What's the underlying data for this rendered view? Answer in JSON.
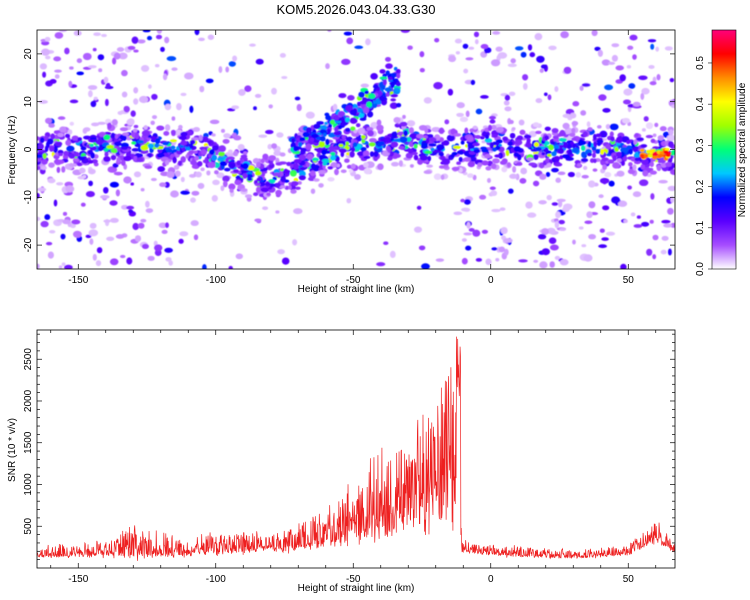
{
  "title": "KOM5.2026.043.04.33.G30",
  "chart_data": [
    {
      "type": "heatmap",
      "title": "",
      "xlabel": "Height of straight line (km)",
      "ylabel": "Frequency (Hz)",
      "xlim": [
        -165,
        67
      ],
      "ylim": [
        -25,
        25
      ],
      "xticks": [
        -150,
        -100,
        -50,
        0,
        50
      ],
      "yticks": [
        -20,
        -10,
        0,
        10,
        20
      ],
      "ridge": [
        {
          "x": -160,
          "y": 0
        },
        {
          "x": -130,
          "y": 1
        },
        {
          "x": -110,
          "y": 0.5
        },
        {
          "x": -95,
          "y": -3
        },
        {
          "x": -85,
          "y": -6
        },
        {
          "x": -70,
          "y": -5
        },
        {
          "x": -60,
          "y": -1
        },
        {
          "x": -45,
          "y": 1
        },
        {
          "x": -30,
          "y": 2
        },
        {
          "x": -20,
          "y": 0
        },
        {
          "x": 0,
          "y": 0.5
        },
        {
          "x": 30,
          "y": 0
        },
        {
          "x": 50,
          "y": 0
        },
        {
          "x": 65,
          "y": -1
        }
      ],
      "branch": [
        {
          "x": -72,
          "y": 0
        },
        {
          "x": -60,
          "y": 4
        },
        {
          "x": -50,
          "y": 8
        },
        {
          "x": -40,
          "y": 12
        },
        {
          "x": -33,
          "y": 15
        }
      ],
      "peak": {
        "x": 60,
        "y": -1,
        "value": 0.55
      },
      "colorbar": {
        "label": "Normalized spectral amplitude",
        "range": [
          0,
          0.58
        ],
        "ticks": [
          0.0,
          0.1,
          0.2,
          0.3,
          0.4,
          0.5
        ],
        "colors": [
          "#ffffff",
          "#a64dff",
          "#5a00ff",
          "#0000ff",
          "#00c8ff",
          "#00ff78",
          "#a0ff00",
          "#ffff00",
          "#ff8c00",
          "#ff0000",
          "#ff007a"
        ]
      }
    },
    {
      "type": "line",
      "title": "",
      "xlabel": "Height of straight line (km)",
      "ylabel": "SNR (10 * v/v)",
      "xlim": [
        -165,
        67
      ],
      "ylim": [
        0,
        2850
      ],
      "xticks": [
        -150,
        -100,
        -50,
        0,
        50
      ],
      "yticks": [
        500,
        1000,
        1500,
        2000,
        2500
      ],
      "series": [
        {
          "name": "SNR",
          "color": "#ee2020",
          "envelope": [
            {
              "x": -165,
              "base": 150,
              "amp": 120
            },
            {
              "x": -140,
              "base": 170,
              "amp": 180
            },
            {
              "x": -130,
              "base": 200,
              "amp": 380
            },
            {
              "x": -110,
              "base": 180,
              "amp": 170
            },
            {
              "x": -100,
              "base": 220,
              "amp": 280
            },
            {
              "x": -80,
              "base": 240,
              "amp": 200
            },
            {
              "x": -70,
              "base": 270,
              "amp": 300
            },
            {
              "x": -60,
              "base": 330,
              "amp": 450
            },
            {
              "x": -50,
              "base": 430,
              "amp": 650
            },
            {
              "x": -45,
              "base": 530,
              "amp": 1000
            },
            {
              "x": -38,
              "base": 560,
              "amp": 950
            },
            {
              "x": -30,
              "base": 680,
              "amp": 1000
            },
            {
              "x": -20,
              "base": 780,
              "amp": 1500
            },
            {
              "x": -15,
              "base": 950,
              "amp": 1850
            },
            {
              "x": -11.5,
              "base": 1100,
              "amp": 1800
            },
            {
              "x": -10.5,
              "base": 220,
              "amp": 150
            },
            {
              "x": 0,
              "base": 170,
              "amp": 120
            },
            {
              "x": 30,
              "base": 130,
              "amp": 100
            },
            {
              "x": 50,
              "base": 170,
              "amp": 120
            },
            {
              "x": 55,
              "base": 260,
              "amp": 180
            },
            {
              "x": 60,
              "base": 360,
              "amp": 220
            },
            {
              "x": 67,
              "base": 200,
              "amp": 130
            }
          ]
        }
      ]
    }
  ]
}
